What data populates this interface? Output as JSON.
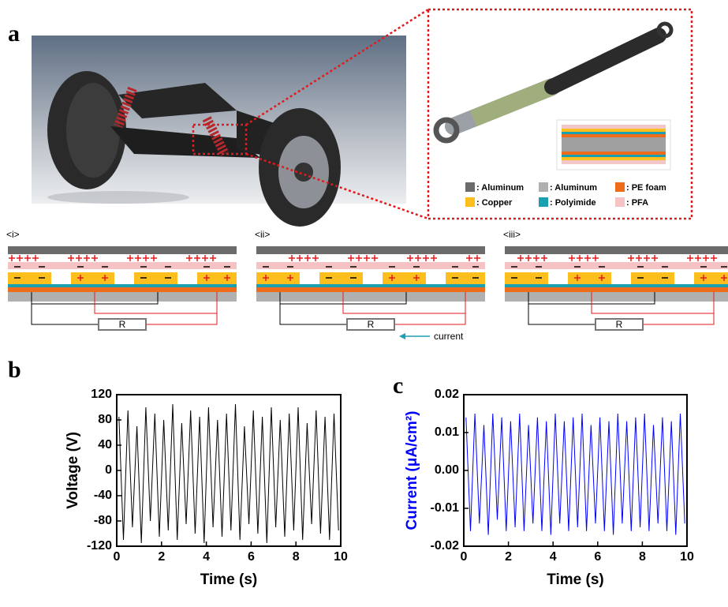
{
  "panel_labels": [
    "a",
    "b",
    "c"
  ],
  "legend": {
    "items": [
      ": Aluminum",
      ": Aluminum",
      ": PE foam",
      ": Copper",
      ": Polyimide",
      ": PFA"
    ]
  },
  "states": [
    "<i>",
    "<ii>",
    "<iii>"
  ],
  "resistor": "R",
  "current_label": "current",
  "chart_data": [
    {
      "type": "line",
      "x_label": "Time (s)",
      "y_label": "Voltage (V)",
      "color": "#000000",
      "xlim": [
        0,
        10
      ],
      "xticks": [
        0,
        2,
        4,
        6,
        8,
        10
      ],
      "ylim": [
        -120,
        120
      ],
      "yticks": [
        -120,
        -80,
        -40,
        0,
        40,
        80,
        120
      ],
      "x": [
        0.1,
        0.3,
        0.5,
        0.7,
        0.9,
        1.1,
        1.3,
        1.5,
        1.7,
        1.9,
        2.1,
        2.3,
        2.5,
        2.7,
        2.9,
        3.1,
        3.3,
        3.5,
        3.7,
        3.9,
        4.1,
        4.3,
        4.5,
        4.7,
        4.9,
        5.1,
        5.3,
        5.5,
        5.7,
        5.9,
        6.1,
        6.3,
        6.5,
        6.7,
        6.9,
        7.1,
        7.3,
        7.5,
        7.7,
        7.9,
        8.1,
        8.3,
        8.5,
        8.7,
        8.9,
        9.1,
        9.3,
        9.5,
        9.7,
        9.9
      ],
      "values": [
        85,
        -110,
        95,
        -90,
        70,
        -115,
        100,
        -80,
        90,
        -105,
        80,
        -95,
        105,
        -110,
        75,
        -85,
        95,
        -100,
        85,
        -115,
        100,
        -90,
        80,
        -105,
        90,
        -95,
        105,
        -110,
        70,
        -85,
        95,
        -100,
        85,
        -115,
        100,
        -90,
        80,
        -105,
        90,
        -95,
        100,
        -110,
        75,
        -85,
        95,
        -100,
        85,
        -110,
        90,
        -95
      ]
    },
    {
      "type": "line",
      "x_label": "Time (s)",
      "y_label": "Current (μA/cm²)",
      "color": "#0000ff",
      "xlim": [
        0,
        10
      ],
      "xticks": [
        0,
        2,
        4,
        6,
        8,
        10
      ],
      "ylim": [
        -0.02,
        0.02
      ],
      "yticks": [
        -0.02,
        -0.01,
        {
          "value": 0,
          "label": "0.00"
        },
        0.01,
        0.02
      ],
      "x": [
        0.1,
        0.3,
        0.5,
        0.7,
        0.9,
        1.1,
        1.3,
        1.5,
        1.7,
        1.9,
        2.1,
        2.3,
        2.5,
        2.7,
        2.9,
        3.1,
        3.3,
        3.5,
        3.7,
        3.9,
        4.1,
        4.3,
        4.5,
        4.7,
        4.9,
        5.1,
        5.3,
        5.5,
        5.7,
        5.9,
        6.1,
        6.3,
        6.5,
        6.7,
        6.9,
        7.1,
        7.3,
        7.5,
        7.7,
        7.9,
        8.1,
        8.3,
        8.5,
        8.7,
        8.9,
        9.1,
        9.3,
        9.5,
        9.7,
        9.9
      ],
      "values": [
        0.014,
        -0.016,
        0.015,
        -0.014,
        0.012,
        -0.017,
        0.015,
        -0.013,
        0.014,
        -0.016,
        0.013,
        -0.015,
        0.015,
        -0.016,
        0.012,
        -0.014,
        0.014,
        -0.016,
        0.013,
        -0.017,
        0.015,
        -0.014,
        0.013,
        -0.016,
        0.014,
        -0.015,
        0.015,
        -0.016,
        0.012,
        -0.014,
        0.014,
        -0.016,
        0.013,
        -0.017,
        0.015,
        -0.014,
        0.013,
        -0.016,
        0.014,
        -0.015,
        0.015,
        -0.016,
        0.012,
        -0.014,
        0.014,
        -0.016,
        0.013,
        -0.017,
        0.015,
        -0.014
      ]
    }
  ]
}
